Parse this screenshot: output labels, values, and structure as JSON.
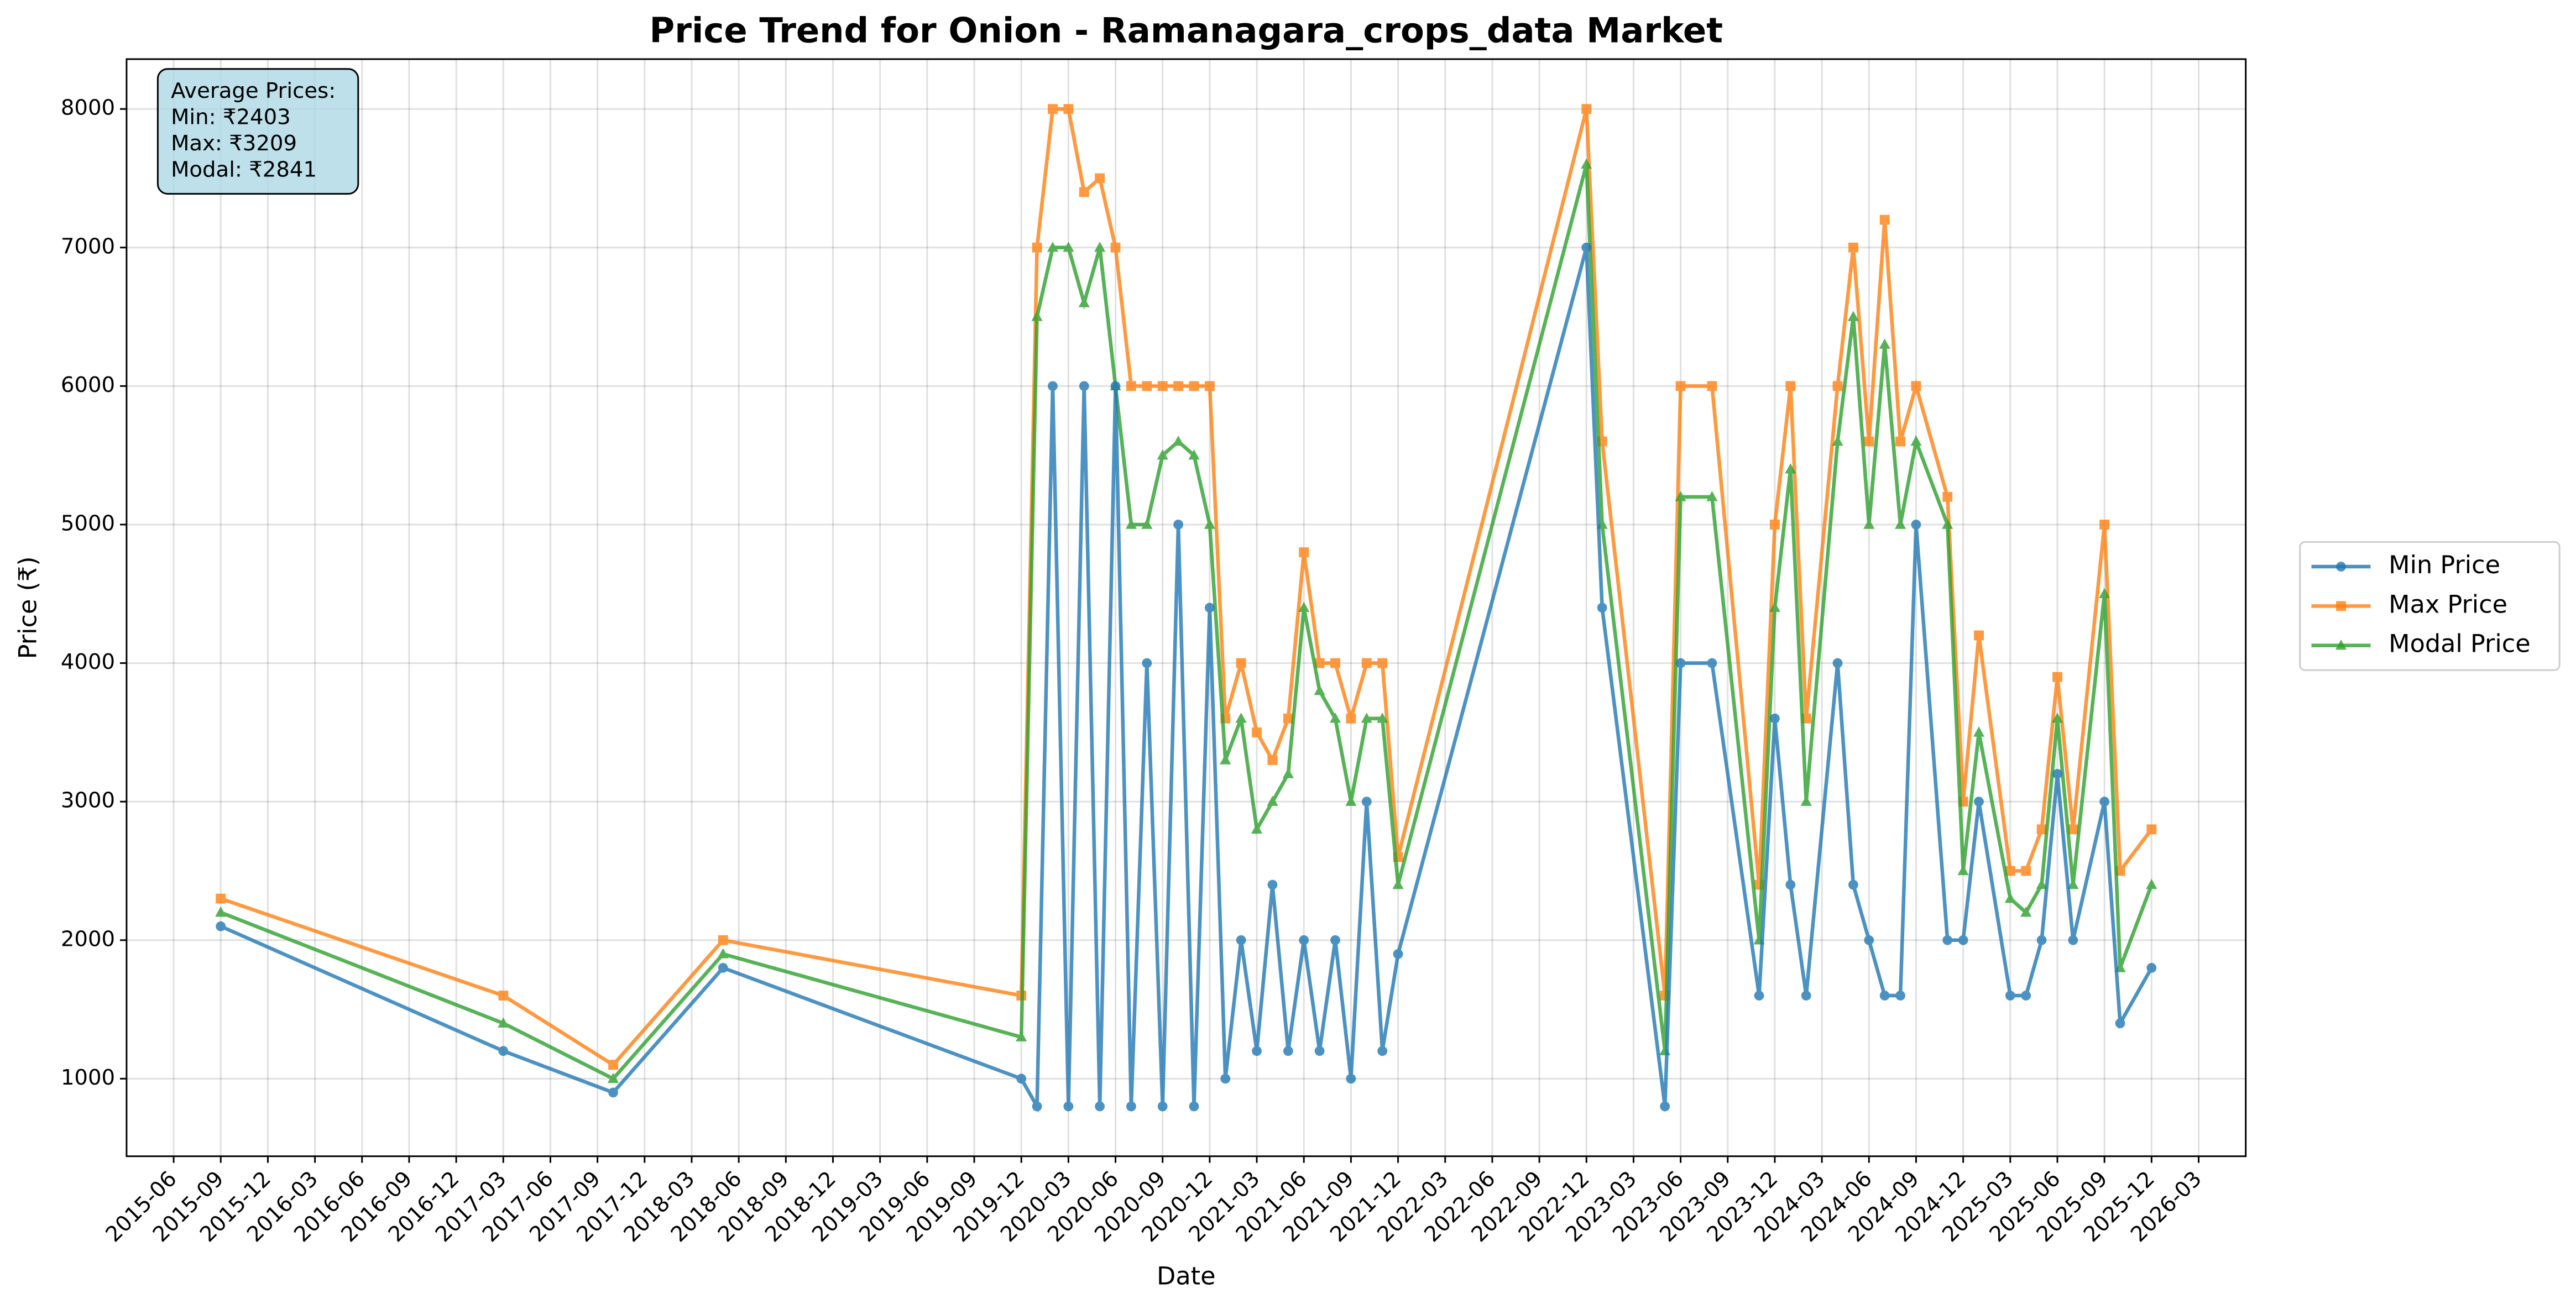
{
  "chart_data": {
    "type": "line",
    "title": "Price Trend for Onion - Ramanagara_crops_data Market",
    "xlabel": "Date",
    "ylabel": "Price (₹)",
    "annotation": [
      "Average Prices:",
      "Min: ₹2403",
      "Max: ₹3209",
      "Modal: ₹2841"
    ],
    "x": [
      "2015-09",
      "2017-03",
      "2017-10",
      "2018-05",
      "2019-12",
      "2020-01",
      "2020-02",
      "2020-03",
      "2020-04",
      "2020-05",
      "2020-06",
      "2020-07",
      "2020-08",
      "2020-09",
      "2020-10",
      "2020-11",
      "2020-12",
      "2021-01",
      "2021-02",
      "2021-03",
      "2021-04",
      "2021-05",
      "2021-06",
      "2021-07",
      "2021-08",
      "2021-09",
      "2021-10",
      "2021-11",
      "2021-12",
      "2022-12",
      "2023-01",
      "2023-05",
      "2023-06",
      "2023-08",
      "2023-11",
      "2023-12",
      "2024-01",
      "2024-02",
      "2024-04",
      "2024-05",
      "2024-06",
      "2024-07",
      "2024-08",
      "2024-09",
      "2024-11",
      "2024-12",
      "2025-01",
      "2025-03",
      "2025-04",
      "2025-05",
      "2025-06",
      "2025-07",
      "2025-09",
      "2025-10",
      "2025-12"
    ],
    "series": [
      {
        "name": "Min Price",
        "color": "#1f77b4",
        "marker": "circle",
        "values": [
          2100,
          1200,
          900,
          1800,
          1000,
          800,
          6000,
          800,
          6000,
          800,
          6000,
          800,
          4000,
          800,
          5000,
          800,
          4400,
          1000,
          2000,
          1200,
          2400,
          1200,
          2000,
          1200,
          2000,
          1000,
          3000,
          1200,
          1900,
          7000,
          4400,
          800,
          4000,
          4000,
          1600,
          3600,
          2400,
          1600,
          4000,
          2400,
          2000,
          1600,
          1600,
          5000,
          2000,
          2000,
          3000,
          1600,
          1600,
          2000,
          3200,
          2000,
          3000,
          1400,
          1800
        ]
      },
      {
        "name": "Max Price",
        "color": "#ff7f0e",
        "marker": "square",
        "values": [
          2300,
          1600,
          1100,
          2000,
          1600,
          7000,
          8000,
          8000,
          7400,
          7500,
          7000,
          6000,
          6000,
          6000,
          6000,
          6000,
          6000,
          3600,
          4000,
          3500,
          3300,
          3600,
          4800,
          4000,
          4000,
          3600,
          4000,
          4000,
          2600,
          8000,
          5600,
          1600,
          6000,
          6000,
          2400,
          5000,
          6000,
          3600,
          6000,
          7000,
          5600,
          7200,
          5600,
          6000,
          5200,
          3000,
          4200,
          2500,
          2500,
          2800,
          3900,
          2800,
          5000,
          2500,
          2800
        ]
      },
      {
        "name": "Modal Price",
        "color": "#2ca02c",
        "marker": "triangle",
        "values": [
          2200,
          1400,
          1000,
          1900,
          1300,
          6500,
          7000,
          7000,
          6600,
          7000,
          6000,
          5000,
          5000,
          5500,
          5600,
          5500,
          5000,
          3300,
          3600,
          2800,
          3000,
          3200,
          4400,
          3800,
          3600,
          3000,
          3600,
          3600,
          2400,
          7600,
          5000,
          1200,
          5200,
          5200,
          2000,
          4400,
          5400,
          3000,
          5600,
          6500,
          5000,
          6300,
          5000,
          5600,
          5000,
          2500,
          3500,
          2300,
          2200,
          2400,
          3600,
          2400,
          4500,
          1800,
          2400
        ]
      }
    ],
    "xlim": [
      "2015-03",
      "2026-06"
    ],
    "xticks": [
      "2015-06",
      "2015-09",
      "2015-12",
      "2016-03",
      "2016-06",
      "2016-09",
      "2016-12",
      "2017-03",
      "2017-06",
      "2017-09",
      "2017-12",
      "2018-03",
      "2018-06",
      "2018-09",
      "2018-12",
      "2019-03",
      "2019-06",
      "2019-09",
      "2019-12",
      "2020-03",
      "2020-06",
      "2020-09",
      "2020-12",
      "2021-03",
      "2021-06",
      "2021-09",
      "2021-12",
      "2022-03",
      "2022-06",
      "2022-09",
      "2022-12",
      "2023-03",
      "2023-06",
      "2023-09",
      "2023-12",
      "2024-03",
      "2024-06",
      "2024-09",
      "2024-12",
      "2025-03",
      "2025-06",
      "2025-09",
      "2025-12",
      "2026-03"
    ],
    "ylim": [
      440,
      8360
    ],
    "yticks": [
      1000,
      2000,
      3000,
      4000,
      5000,
      6000,
      7000,
      8000
    ],
    "grid": true,
    "legend": "outside right"
  }
}
